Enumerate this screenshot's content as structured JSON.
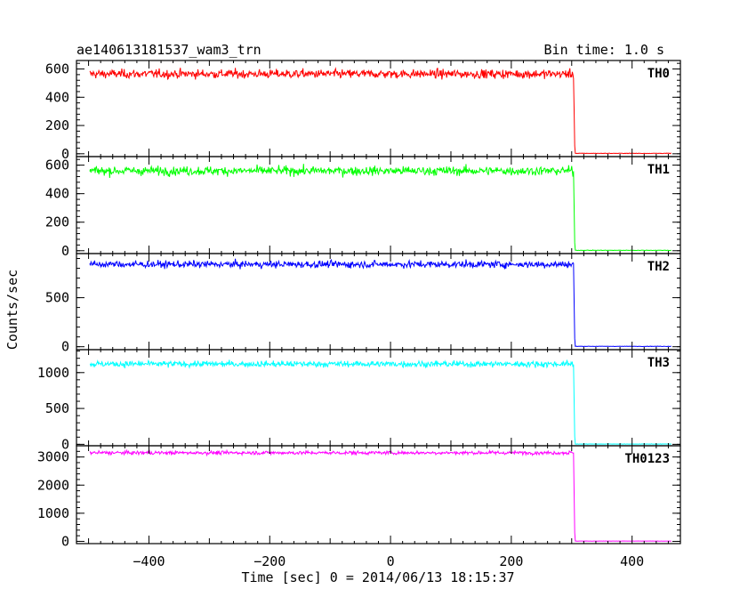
{
  "chart_data": {
    "type": "line",
    "title": "ae140613181537_wam3_trn",
    "subtitle": "Bin time: 1.0 s",
    "xlabel": "Time [sec] 0 = 2014/06/13 18:15:37",
    "ylabel": "Counts/sec",
    "xlim": [
      -520,
      480
    ],
    "x_ticks": [
      -400,
      -200,
      0,
      200,
      400
    ],
    "x_range": [
      -498,
      465
    ],
    "drop_time": 304,
    "grid": false,
    "panels": [
      {
        "name": "TH0",
        "color": "#ff0000",
        "ylim": [
          -20,
          660
        ],
        "y_ticks": [
          0,
          200,
          400,
          600
        ],
        "level_before": 565,
        "noise": 22,
        "level_after": 3
      },
      {
        "name": "TH1",
        "color": "#00ff00",
        "ylim": [
          -20,
          660
        ],
        "y_ticks": [
          0,
          200,
          400,
          600
        ],
        "level_before": 560,
        "noise": 22,
        "level_after": 3
      },
      {
        "name": "TH2",
        "color": "#0000ff",
        "ylim": [
          -30,
          950
        ],
        "y_ticks": [
          0,
          500
        ],
        "level_before": 840,
        "noise": 25,
        "level_after": 4
      },
      {
        "name": "TH3",
        "color": "#00ffff",
        "ylim": [
          -20,
          1320
        ],
        "y_ticks": [
          0,
          500,
          1000
        ],
        "level_before": 1120,
        "noise": 30,
        "level_after": 4
      },
      {
        "name": "TH0123",
        "color": "#ff00ff",
        "ylim": [
          -80,
          3400
        ],
        "y_ticks": [
          0,
          1000,
          2000,
          3000
        ],
        "level_before": 3150,
        "noise": 45,
        "level_after": 10
      }
    ]
  }
}
